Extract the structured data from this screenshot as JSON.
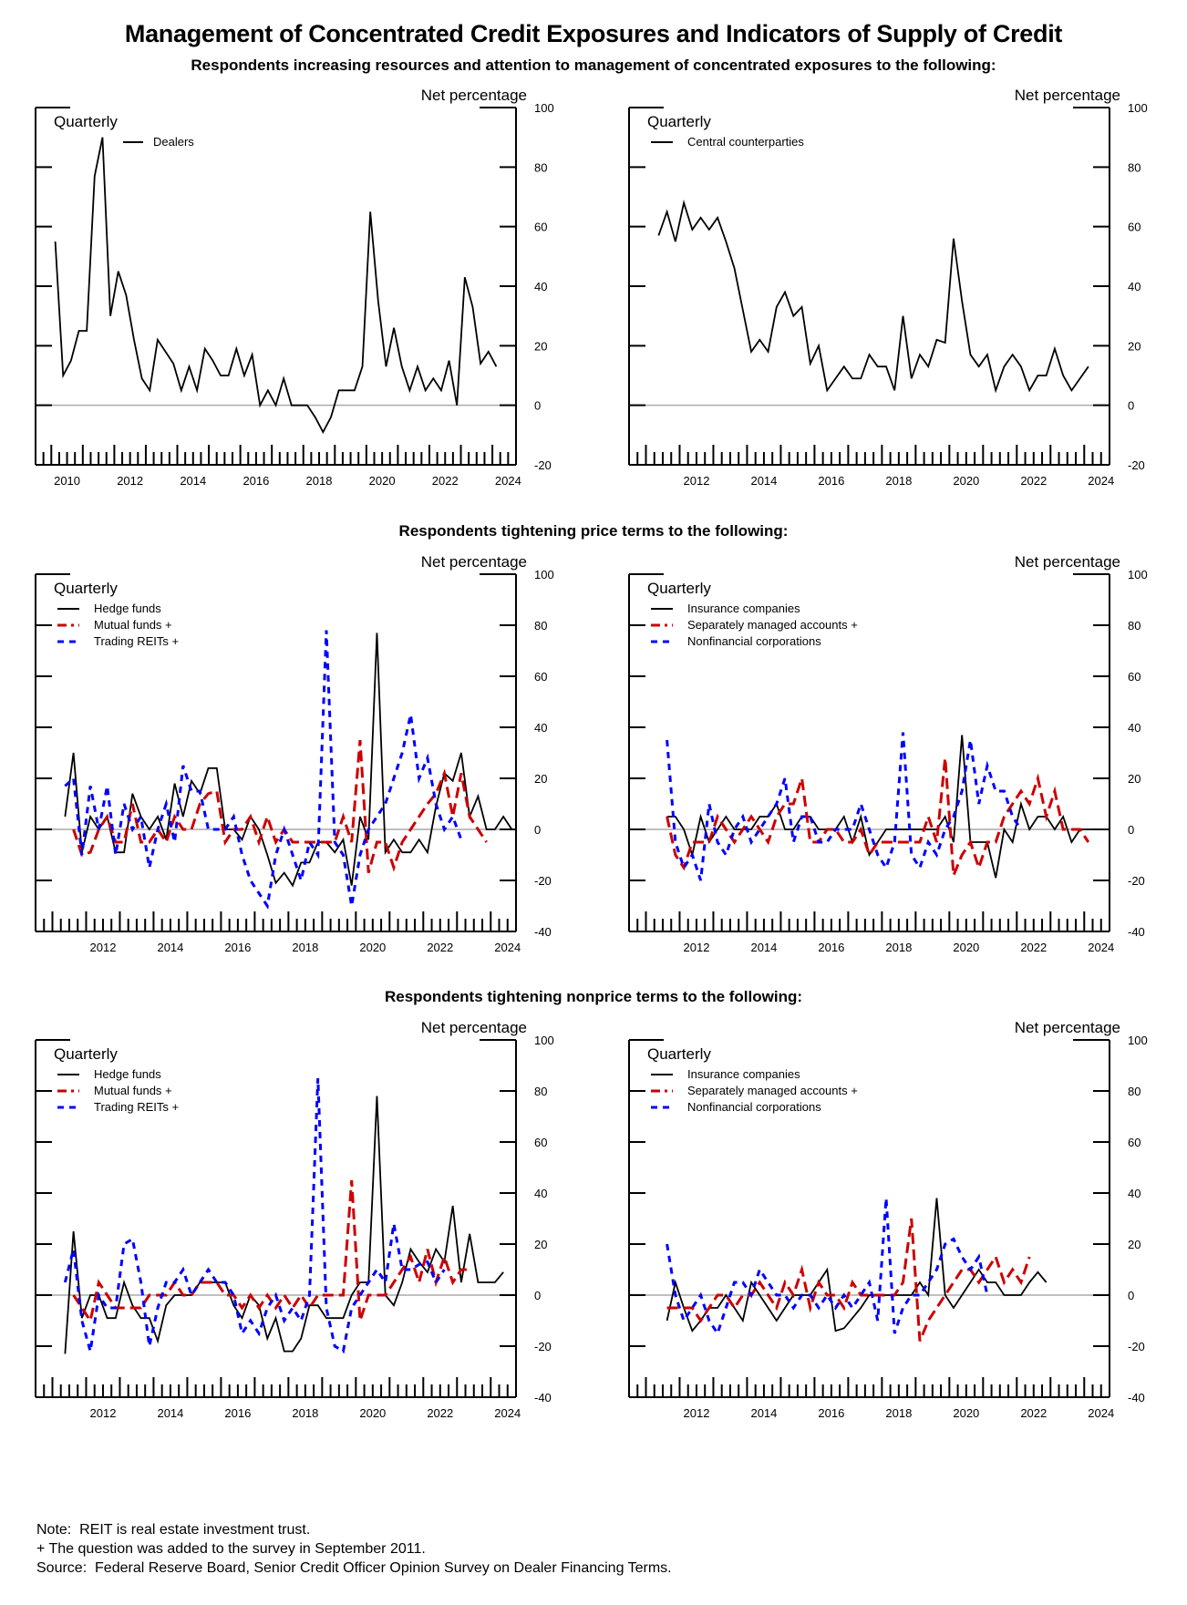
{
  "title": "Management of Concentrated Credit Exposures and Indicators of Supply of Credit",
  "sections": [
    "Respondents increasing resources and attention to management of concentrated exposures to the following:",
    "Respondents tightening price terms to the following:",
    "Respondents tightening nonprice terms to the following:"
  ],
  "notes": [
    "Note:  REIT is real estate investment trust.",
    "+ The question was added to the survey in September 2011.",
    "Source:  Federal Reserve Board, Senior Credit Officer Opinion Survey on Dealer Financing Terms."
  ],
  "colors": {
    "black": "#000000",
    "red": "#cc0000",
    "blue": "#0000ff",
    "zero_line": "#aaaaaa"
  },
  "chart_data": [
    {
      "id": "dealers",
      "type": "line",
      "frequency_label": "Quarterly",
      "ylabel": "Net percentage",
      "ylim": [
        -20,
        100
      ],
      "yticks": [
        -20,
        0,
        20,
        40,
        60,
        80,
        100
      ],
      "xlim": [
        2009.5,
        2024.75
      ],
      "xticks": [
        2010,
        2012,
        2014,
        2016,
        2018,
        2020,
        2022,
        2024
      ],
      "legend_position": "top-left",
      "series": [
        {
          "name": "Dealers",
          "color": "black",
          "style": "solid",
          "start": 2010.0,
          "values": [
            55,
            10,
            15,
            25,
            25,
            77,
            90,
            30,
            45,
            37,
            22,
            9,
            5,
            22,
            18,
            14,
            5,
            13,
            5,
            19,
            15,
            10,
            10,
            19,
            10,
            17,
            0,
            5,
            0,
            9,
            0,
            0,
            0,
            -4,
            -9,
            -4,
            5,
            5,
            5,
            13,
            65,
            35,
            13,
            26,
            13,
            5,
            13,
            5,
            9,
            5,
            15,
            0,
            43,
            33,
            14,
            18,
            13
          ]
        }
      ]
    },
    {
      "id": "ccp",
      "type": "line",
      "frequency_label": "Quarterly",
      "ylabel": "Net percentage",
      "ylim": [
        -20,
        100
      ],
      "yticks": [
        -20,
        0,
        20,
        40,
        60,
        80,
        100
      ],
      "xlim": [
        2010.5,
        2024.75
      ],
      "xticks": [
        2012,
        2014,
        2016,
        2018,
        2020,
        2022,
        2024
      ],
      "legend_position": "top-left",
      "series": [
        {
          "name": "Central counterparties",
          "color": "black",
          "style": "solid",
          "start": 2011.25,
          "values": [
            57,
            65,
            55,
            68,
            59,
            63,
            59,
            63,
            55,
            46,
            32,
            18,
            22,
            18,
            33,
            38,
            30,
            33,
            14,
            20,
            5,
            9,
            13,
            9,
            9,
            17,
            13,
            13,
            5,
            30,
            9,
            17,
            13,
            22,
            21,
            56,
            35,
            17,
            13,
            17,
            5,
            13,
            17,
            13,
            5,
            10,
            10,
            19,
            10,
            5,
            9,
            13
          ]
        }
      ]
    },
    {
      "id": "price-left",
      "type": "line",
      "frequency_label": "Quarterly",
      "ylabel": "Net percentage",
      "ylim": [
        -40,
        100
      ],
      "yticks": [
        -40,
        -20,
        0,
        20,
        40,
        60,
        80,
        100
      ],
      "xlim": [
        2010.5,
        2024.75
      ],
      "xticks": [
        2012,
        2014,
        2016,
        2018,
        2020,
        2022,
        2024
      ],
      "legend_position": "top-left",
      "series": [
        {
          "name": "Hedge funds",
          "color": "black",
          "style": "solid",
          "start": 2011.25,
          "values": [
            5,
            30,
            -9,
            5,
            0,
            5,
            -9,
            -9,
            14,
            5,
            0,
            5,
            -4,
            18,
            5,
            19,
            14,
            24,
            24,
            0,
            0,
            -4,
            5,
            0,
            -10,
            -21,
            -17,
            -22,
            -13,
            -13,
            -5,
            -5,
            -9,
            -4,
            -22,
            5,
            -4,
            77,
            -9,
            -4,
            -9,
            -9,
            -4,
            -9,
            9,
            22,
            19,
            30,
            5,
            13,
            0,
            0,
            5,
            0
          ]
        },
        {
          "name": "Mutual funds +",
          "color": "red",
          "style": "dash",
          "start": 2011.5,
          "values": [
            0,
            -10,
            -9,
            0,
            5,
            -5,
            -5,
            10,
            -5,
            -5,
            0,
            -5,
            5,
            0,
            0,
            10,
            14,
            15,
            -5,
            0,
            0,
            5,
            -5,
            5,
            -5,
            0,
            -5,
            -5,
            -5,
            -5,
            -5,
            -5,
            5,
            -5,
            35,
            -17,
            -5,
            -5,
            -15,
            -5,
            0,
            5,
            10,
            14,
            22,
            5,
            22,
            5,
            0,
            -5
          ]
        },
        {
          "name": "Trading REITs +",
          "color": "blue",
          "style": "dash",
          "start": 2011.25,
          "values": [
            17,
            20,
            -10,
            17,
            0,
            17,
            -10,
            10,
            0,
            5,
            -15,
            0,
            10,
            -5,
            25,
            15,
            15,
            0,
            0,
            0,
            5,
            -10,
            -20,
            -25,
            -30,
            -10,
            0,
            -10,
            -20,
            -5,
            -10,
            78,
            -5,
            -10,
            -30,
            -10,
            0,
            5,
            10,
            20,
            30,
            45,
            20,
            28,
            10,
            0,
            5,
            -4
          ]
        }
      ]
    },
    {
      "id": "price-right",
      "type": "line",
      "frequency_label": "Quarterly",
      "ylabel": "Net percentage",
      "ylim": [
        -40,
        100
      ],
      "yticks": [
        -40,
        -20,
        0,
        20,
        40,
        60,
        80,
        100
      ],
      "xlim": [
        2010.5,
        2024.75
      ],
      "xticks": [
        2012,
        2014,
        2016,
        2018,
        2020,
        2022,
        2024
      ],
      "legend_position": "top-left",
      "series": [
        {
          "name": "Insurance companies",
          "color": "black",
          "style": "solid",
          "start": 2011.5,
          "values": [
            5,
            5,
            0,
            -10,
            5,
            -5,
            0,
            5,
            0,
            0,
            0,
            5,
            5,
            10,
            0,
            0,
            5,
            5,
            0,
            0,
            0,
            5,
            -5,
            5,
            -10,
            -5,
            0,
            0,
            0,
            0,
            0,
            0,
            0,
            5,
            -5,
            37,
            -5,
            -5,
            -5,
            -19,
            0,
            -5,
            10,
            0,
            5,
            5,
            0,
            5,
            -5,
            0,
            0,
            0
          ]
        },
        {
          "name": "Separately managed accounts +",
          "color": "red",
          "style": "dash",
          "start": 2011.5,
          "values": [
            5,
            -10,
            -15,
            -5,
            -5,
            -5,
            5,
            0,
            -5,
            0,
            5,
            0,
            -5,
            5,
            10,
            10,
            20,
            -5,
            -5,
            0,
            0,
            -5,
            -5,
            0,
            -10,
            -5,
            -5,
            -5,
            -5,
            -5,
            -5,
            5,
            -5,
            28,
            -18,
            -10,
            -5,
            -15,
            -5,
            -5,
            5,
            10,
            15,
            10,
            20,
            5,
            15,
            0,
            0,
            0,
            -5
          ]
        },
        {
          "name": "Nonfinancial corporations",
          "color": "blue",
          "style": "dash",
          "start": 2011.5,
          "values": [
            35,
            -5,
            -15,
            -10,
            -20,
            10,
            -5,
            -10,
            0,
            5,
            -5,
            0,
            5,
            10,
            20,
            -5,
            5,
            5,
            -5,
            -5,
            0,
            0,
            0,
            10,
            0,
            -10,
            -15,
            -5,
            38,
            -10,
            -15,
            -5,
            -10,
            0,
            5,
            15,
            35,
            10,
            25,
            15,
            15,
            5,
            0
          ]
        }
      ]
    },
    {
      "id": "nonprice-left",
      "type": "line",
      "frequency_label": "Quarterly",
      "ylabel": "Net percentage",
      "ylim": [
        -40,
        100
      ],
      "yticks": [
        -40,
        -20,
        0,
        20,
        40,
        60,
        80,
        100
      ],
      "xlim": [
        2010.5,
        2024.75
      ],
      "xticks": [
        2012,
        2014,
        2016,
        2018,
        2020,
        2022,
        2024
      ],
      "legend_position": "top-left",
      "series": [
        {
          "name": "Hedge funds",
          "color": "black",
          "style": "solid",
          "start": 2011.25,
          "values": [
            -23,
            25,
            -9,
            0,
            0,
            -9,
            -9,
            5,
            -4,
            -9,
            -9,
            -18,
            -4,
            0,
            0,
            0,
            5,
            5,
            5,
            5,
            -4,
            -9,
            0,
            -4,
            -17,
            -9,
            -22,
            -22,
            -17,
            -4,
            -4,
            -9,
            -9,
            -9,
            0,
            5,
            5,
            78,
            0,
            -4,
            5,
            18,
            13,
            9,
            18,
            13,
            35,
            5,
            24,
            5,
            5,
            5,
            9
          ]
        },
        {
          "name": "Mutual funds +",
          "color": "red",
          "style": "dash",
          "start": 2011.5,
          "values": [
            0,
            -5,
            -10,
            5,
            0,
            -5,
            -5,
            -5,
            -5,
            0,
            0,
            0,
            5,
            0,
            0,
            5,
            5,
            5,
            0,
            0,
            -5,
            0,
            -5,
            0,
            -5,
            0,
            -5,
            0,
            -5,
            0,
            0,
            0,
            0,
            45,
            -10,
            0,
            0,
            0,
            5,
            10,
            15,
            5,
            18,
            5,
            15,
            5,
            10,
            10
          ]
        },
        {
          "name": "Trading REITs +",
          "color": "blue",
          "style": "dash",
          "start": 2011.25,
          "values": [
            5,
            18,
            -10,
            -22,
            0,
            -5,
            -5,
            20,
            22,
            5,
            -20,
            -5,
            5,
            5,
            10,
            0,
            5,
            10,
            5,
            5,
            0,
            -15,
            -10,
            -15,
            -5,
            0,
            -10,
            -5,
            -10,
            0,
            85,
            -5,
            -20,
            -22,
            -5,
            0,
            5,
            10,
            5,
            28,
            10,
            10,
            12,
            13,
            5,
            10
          ]
        }
      ]
    },
    {
      "id": "nonprice-right",
      "type": "line",
      "frequency_label": "Quarterly",
      "ylabel": "Net percentage",
      "ylim": [
        -40,
        100
      ],
      "yticks": [
        -40,
        -20,
        0,
        20,
        40,
        60,
        80,
        100
      ],
      "xlim": [
        2010.5,
        2024.75
      ],
      "xticks": [
        2012,
        2014,
        2016,
        2018,
        2020,
        2022,
        2024
      ],
      "legend_position": "top-left",
      "series": [
        {
          "name": "Insurance companies",
          "color": "black",
          "style": "solid",
          "start": 2011.5,
          "values": [
            -10,
            5,
            -5,
            -14,
            -10,
            -5,
            -5,
            0,
            -5,
            -10,
            5,
            0,
            -5,
            -10,
            -5,
            0,
            0,
            0,
            5,
            10,
            -14,
            -13,
            -9,
            -5,
            0,
            0,
            0,
            0,
            0,
            0,
            5,
            0,
            38,
            0,
            -5,
            0,
            5,
            10,
            5,
            5,
            0,
            0,
            0,
            5,
            9,
            5
          ]
        },
        {
          "name": "Separately managed accounts +",
          "color": "red",
          "style": "dash",
          "start": 2011.5,
          "values": [
            -5,
            -5,
            -5,
            -5,
            -10,
            -5,
            0,
            0,
            -5,
            0,
            0,
            5,
            0,
            -5,
            5,
            0,
            10,
            -5,
            5,
            0,
            0,
            -5,
            5,
            0,
            0,
            0,
            0,
            0,
            5,
            30,
            -18,
            -10,
            -5,
            0,
            5,
            10,
            10,
            5,
            10,
            15,
            5,
            10,
            5,
            15
          ]
        },
        {
          "name": "Nonfinancial corporations",
          "color": "blue",
          "style": "dash",
          "start": 2011.5,
          "values": [
            20,
            0,
            -10,
            -5,
            0,
            -10,
            -15,
            -5,
            5,
            5,
            0,
            10,
            5,
            0,
            0,
            -5,
            0,
            0,
            -5,
            0,
            -5,
            0,
            -5,
            0,
            5,
            -10,
            38,
            -15,
            -5,
            0,
            0,
            5,
            10,
            20,
            22,
            15,
            10,
            15,
            0
          ]
        }
      ]
    }
  ]
}
